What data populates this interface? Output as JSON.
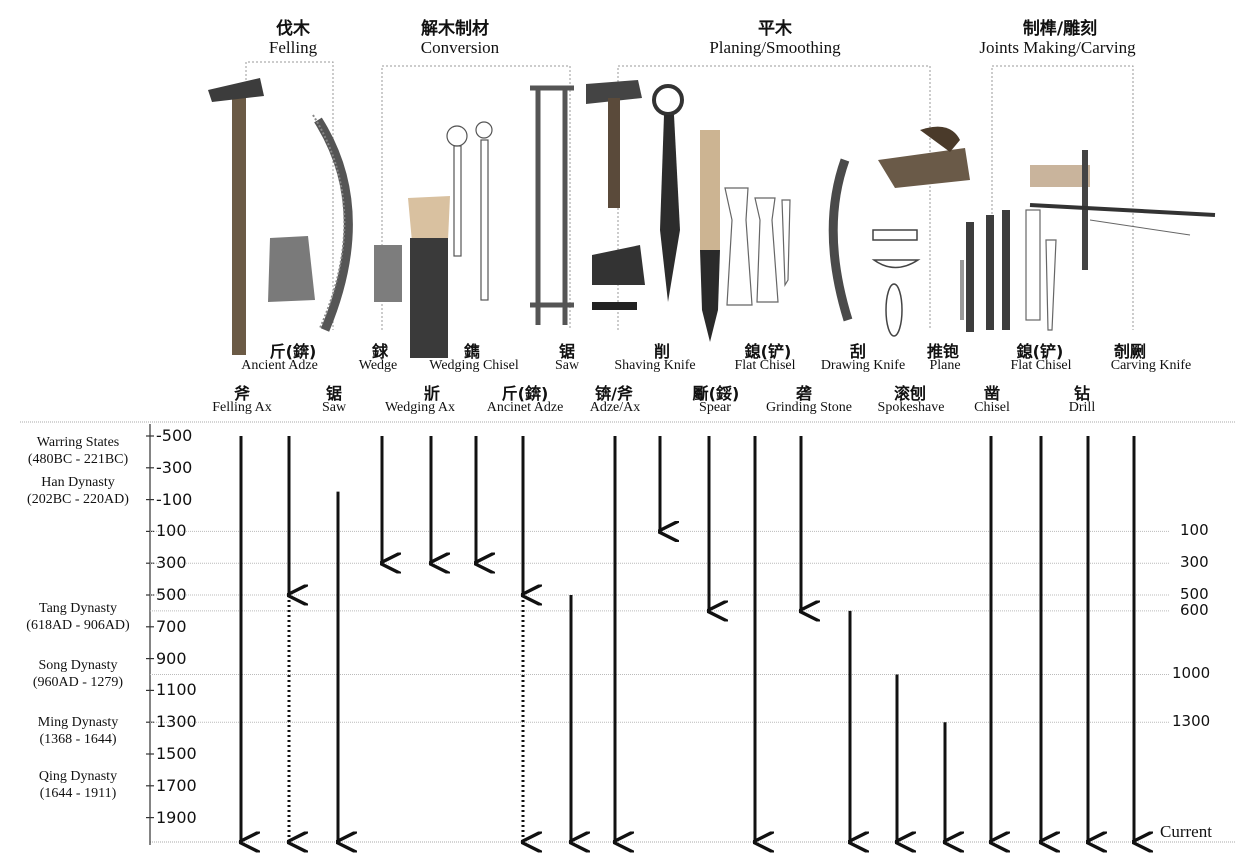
{
  "categories": [
    {
      "cn": "伐木",
      "en": "Felling"
    },
    {
      "cn": "解木制材",
      "en": "Conversion"
    },
    {
      "cn": "平木",
      "en": "Planing/Smoothing"
    },
    {
      "cn": "制榫/雕刻",
      "en": "Joints Making/Carving"
    }
  ],
  "tools_row1": [
    {
      "cn": "斤(錛)",
      "en": "Ancient Adze"
    },
    {
      "cn": "銶",
      "en": "Wedge"
    },
    {
      "cn": "鐫",
      "en": "Wedging Chisel"
    },
    {
      "cn": "锯",
      "en": "Saw"
    },
    {
      "cn": "削",
      "en": "Shaving Knife"
    },
    {
      "cn": "鎴(铲)",
      "en": "Flat Chisel"
    },
    {
      "cn": "刮",
      "en": "Drawing Knife"
    },
    {
      "cn": "推铇",
      "en": "Plane"
    },
    {
      "cn": "鎴(铲)",
      "en": "Flat Chisel"
    },
    {
      "cn": "剞劂",
      "en": "Carving Knife"
    }
  ],
  "tools_row2": [
    {
      "cn": "斧",
      "en": "Felling Ax"
    },
    {
      "cn": "锯",
      "en": "Saw"
    },
    {
      "cn": "斨",
      "en": "Wedging Ax"
    },
    {
      "cn": "斤(錛)",
      "en": "Ancinet Adze"
    },
    {
      "cn": "锛/斧",
      "en": "Adze/Ax"
    },
    {
      "cn": "斸(鋖)",
      "en": "Spear"
    },
    {
      "cn": "砻",
      "en": "Grinding Stone"
    },
    {
      "cn": "滚刨",
      "en": "Spokeshave"
    },
    {
      "cn": "凿",
      "en": "Chisel"
    },
    {
      "cn": "钻",
      "en": "Drill"
    }
  ],
  "year_ticks": [
    "-500",
    "-300",
    "-100",
    "100",
    "300",
    "500",
    "700",
    "900",
    "1100",
    "1300",
    "1500",
    "1700",
    "1900"
  ],
  "right_labels": [
    "100",
    "300",
    "500",
    "600",
    "1000",
    "1300",
    "Current"
  ],
  "dynasties": [
    {
      "name": "Warring States",
      "range": "(480BC - 221BC)"
    },
    {
      "name": "Han Dynasty",
      "range": "(202BC - 220AD)"
    },
    {
      "name": "Tang Dynasty",
      "range": "(618AD - 906AD)"
    },
    {
      "name": "Song Dynasty",
      "range": "(960AD - 1279)"
    },
    {
      "name": "Ming Dynasty",
      "range": "(1368 - 1644)"
    },
    {
      "name": "Qing Dynasty",
      "range": "(1644 - 1911)"
    }
  ],
  "timelines": [
    {
      "tool": "Felling Ax",
      "start": -500,
      "end": "current",
      "style": "solid"
    },
    {
      "tool": "Saw (early)",
      "start": -500,
      "end": 500,
      "style": "solid"
    },
    {
      "tool": "Saw (later)",
      "start": 500,
      "end": "current",
      "style": "dotted"
    },
    {
      "tool": "Saw",
      "start": -150,
      "end": "current",
      "style": "solid"
    },
    {
      "tool": "Wedge",
      "start": -500,
      "end": 300,
      "style": "solid"
    },
    {
      "tool": "Wedging Ax",
      "start": -500,
      "end": 300,
      "style": "solid"
    },
    {
      "tool": "Wedging Chisel",
      "start": -500,
      "end": 300,
      "style": "solid"
    },
    {
      "tool": "Ancinet Adze (early)",
      "start": -500,
      "end": 500,
      "style": "solid"
    },
    {
      "tool": "Ancinet Adze (later)",
      "start": 500,
      "end": "current",
      "style": "dotted"
    },
    {
      "tool": "Saw (frame)",
      "start": 500,
      "end": "current",
      "style": "solid"
    },
    {
      "tool": "Adze/Ax",
      "start": -500,
      "end": "current",
      "style": "solid"
    },
    {
      "tool": "Shaving Knife",
      "start": -500,
      "end": 100,
      "style": "solid"
    },
    {
      "tool": "Spear",
      "start": -500,
      "end": 600,
      "style": "solid"
    },
    {
      "tool": "Flat Chisel",
      "start": -500,
      "end": "current",
      "style": "solid"
    },
    {
      "tool": "Grinding Stone",
      "start": -500,
      "end": 600,
      "style": "solid"
    },
    {
      "tool": "Drawing Knife",
      "start": 600,
      "end": "current",
      "style": "solid"
    },
    {
      "tool": "Spokeshave",
      "start": 1000,
      "end": "current",
      "style": "solid"
    },
    {
      "tool": "Plane",
      "start": 1300,
      "end": "current",
      "style": "solid"
    },
    {
      "tool": "Chisel",
      "start": -500,
      "end": "current",
      "style": "solid"
    },
    {
      "tool": "Flat Chisel (carving)",
      "start": -500,
      "end": "current",
      "style": "solid"
    },
    {
      "tool": "Drill",
      "start": -500,
      "end": "current",
      "style": "solid"
    },
    {
      "tool": "Carving Knife",
      "start": -500,
      "end": "current",
      "style": "solid"
    }
  ]
}
